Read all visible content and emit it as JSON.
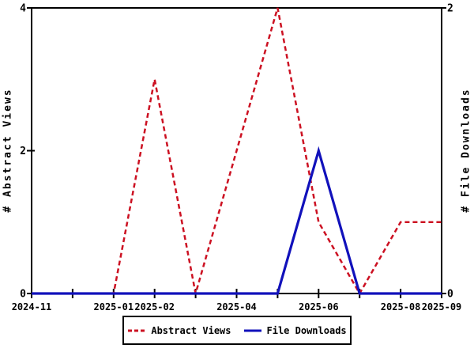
{
  "chart_data": {
    "type": "line",
    "x": [
      "2024-11",
      "2024-12",
      "2025-01",
      "2025-02",
      "2025-03",
      "2025-04",
      "2025-05",
      "2025-06",
      "2025-07",
      "2025-08",
      "2025-09"
    ],
    "x_labels_shown": [
      "2024-11",
      "2025-01",
      "2025-02",
      "2025-04",
      "2025-06",
      "2025-08",
      "2025-09"
    ],
    "series": [
      {
        "name": "Abstract Views",
        "axis": "left",
        "style": "dashed",
        "color": "#cc1122",
        "values": [
          0,
          0,
          0,
          3,
          0,
          2,
          4,
          1,
          0,
          1,
          1
        ]
      },
      {
        "name": "File Downloads",
        "axis": "right",
        "style": "solid",
        "color": "#1111bb",
        "values": [
          0,
          0,
          0,
          0,
          0,
          0,
          0,
          1,
          0,
          0,
          0
        ]
      }
    ],
    "left_axis": {
      "label": "# Abstract Views",
      "range": [
        0,
        4
      ],
      "ticks": [
        0,
        2,
        4
      ]
    },
    "right_axis": {
      "label": "# File Downloads",
      "range": [
        0,
        2
      ],
      "ticks": [
        0,
        2
      ]
    },
    "legend": {
      "entries": [
        "Abstract Views",
        "File Downloads"
      ],
      "position": "bottom-center"
    },
    "grid": false,
    "frame_color": "#000000",
    "background": "#ffffff"
  }
}
